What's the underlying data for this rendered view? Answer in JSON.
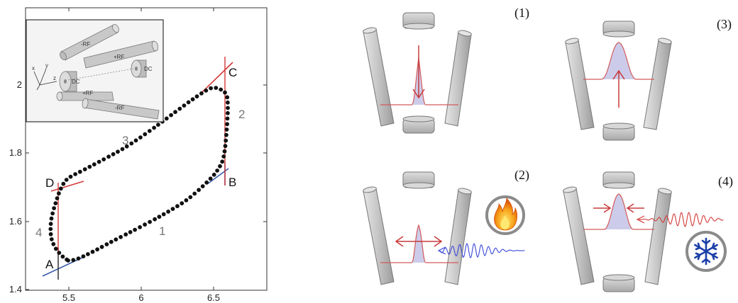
{
  "cycle_plot": {
    "x_ticks": [
      "5.5",
      "6",
      "6.5"
    ],
    "y_ticks": [
      "1.4",
      "1.6",
      "1.8",
      "2"
    ],
    "corner_labels": {
      "A": "A",
      "B": "B",
      "C": "C",
      "D": "D"
    },
    "stroke_labels": {
      "s1": "1",
      "s2": "2",
      "s3": "3",
      "s4": "4"
    },
    "inset_labels": {
      "minus_rf_top": "-RF",
      "plus_rf_top": "+RF",
      "plus_rf_bottom": "+RF",
      "minus_rf_bottom": "-RF",
      "dc_left": "DC",
      "dc_right": "DC",
      "axis_x": "x",
      "axis_y": "y",
      "axis_z": "z"
    }
  },
  "panels": {
    "p1": "(1)",
    "p2": "(2)",
    "p3": "(3)",
    "p4": "(4)"
  },
  "colors": {
    "dot": "#111111",
    "red_line": "#d23a3a",
    "blue_line": "#3a5ca8",
    "rod_fill": "#c8c8c8",
    "gauss_fill": "#ccccea",
    "heat_wave": "#3a48d8",
    "cool_wave": "#d23a3a",
    "snowflake": "#1a3fa8",
    "flame": "#f08a10"
  }
}
